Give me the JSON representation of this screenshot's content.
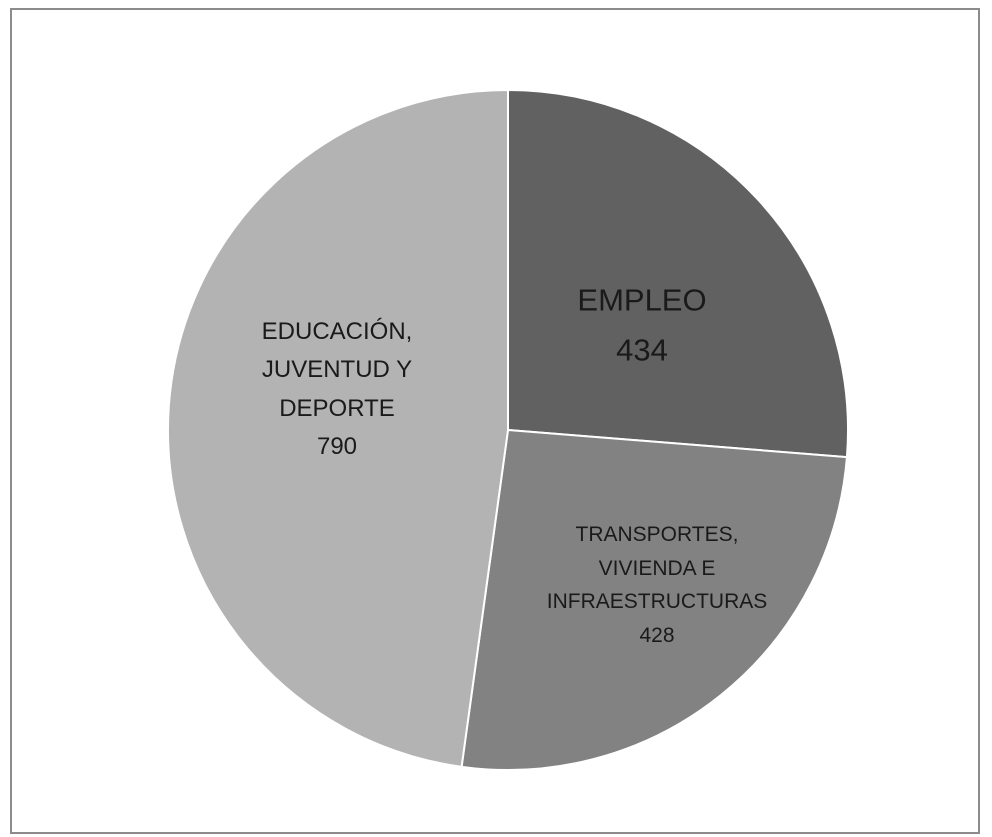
{
  "chart_data": {
    "type": "pie",
    "title": "",
    "slices": [
      {
        "name": "EMPLEO",
        "value": 434,
        "color": "#616161"
      },
      {
        "name": "TRANSPORTES,\nVIVIENDA E\nINFRAESTRUCTURAS",
        "value": 428,
        "color": "#828282"
      },
      {
        "name": "EDUCACIÓN,\nJUVENTUD Y\nDEPORTE",
        "value": 790,
        "color": "#b3b3b3"
      }
    ],
    "start_angle_deg": 0,
    "direction": "clockwise",
    "slice_border_color": "#ffffff",
    "legend": "none",
    "data_labels": "inside"
  }
}
